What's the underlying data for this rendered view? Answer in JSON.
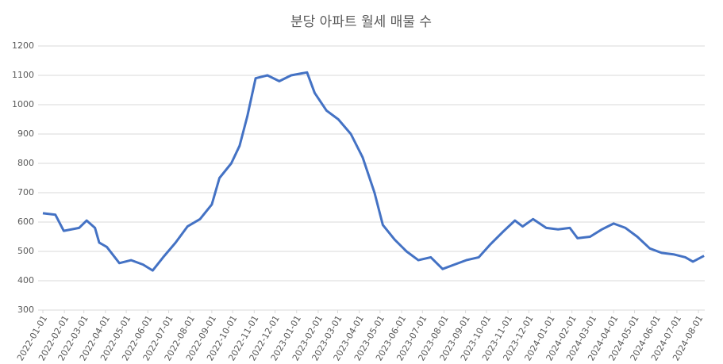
{
  "chart_data": {
    "type": "line",
    "title": "분당 아파트 월세 매물 수",
    "x": [
      "2022-01-01",
      "2022-01-19",
      "2022-01-31",
      "2022-02-22",
      "2022-03-05",
      "2022-03-17",
      "2022-03-23",
      "2022-04-03",
      "2022-04-21",
      "2022-05-08",
      "2022-05-25",
      "2022-06-08",
      "2022-06-23",
      "2022-07-11",
      "2022-07-28",
      "2022-08-15",
      "2022-09-01",
      "2022-09-12",
      "2022-09-29",
      "2022-10-11",
      "2022-10-22",
      "2022-11-03",
      "2022-11-20",
      "2022-12-07",
      "2022-12-24",
      "2023-01-16",
      "2023-01-27",
      "2023-02-13",
      "2023-03-02",
      "2023-03-20",
      "2023-04-06",
      "2023-04-23",
      "2023-05-05",
      "2023-05-22",
      "2023-06-08",
      "2023-06-25",
      "2023-07-13",
      "2023-07-30",
      "2023-08-16",
      "2023-09-02",
      "2023-09-20",
      "2023-10-07",
      "2023-10-24",
      "2023-11-11",
      "2023-11-22",
      "2023-12-07",
      "2023-12-26",
      "2024-01-12",
      "2024-01-29",
      "2024-02-09",
      "2024-02-27",
      "2024-03-15",
      "2024-04-01",
      "2024-04-18",
      "2024-05-05",
      "2024-05-23",
      "2024-06-09",
      "2024-06-26",
      "2024-07-13",
      "2024-07-24",
      "2024-08-09"
    ],
    "values": [
      630,
      625,
      570,
      580,
      605,
      580,
      530,
      515,
      460,
      470,
      455,
      435,
      480,
      530,
      585,
      610,
      660,
      750,
      800,
      860,
      960,
      1090,
      1100,
      1080,
      1100,
      1110,
      1040,
      980,
      950,
      900,
      820,
      700,
      590,
      540,
      500,
      470,
      480,
      440,
      455,
      470,
      480,
      525,
      565,
      605,
      585,
      610,
      580,
      575,
      580,
      545,
      550,
      575,
      595,
      580,
      550,
      510,
      495,
      490,
      480,
      465,
      485
    ],
    "color": "#4472c4",
    "xlim": [
      "2022-01-01",
      "2024-08-10"
    ],
    "xticks": [
      "2022-01-01",
      "2022-02-01",
      "2022-03-01",
      "2022-04-01",
      "2022-05-01",
      "2022-06-01",
      "2022-07-01",
      "2022-08-01",
      "2022-09-01",
      "2022-10-01",
      "2022-11-01",
      "2022-12-01",
      "2023-01-01",
      "2023-02-01",
      "2023-03-01",
      "2023-04-01",
      "2023-05-01",
      "2023-06-01",
      "2023-07-01",
      "2023-08-01",
      "2023-09-01",
      "2023-10-01",
      "2023-11-01",
      "2023-12-01",
      "2024-01-01",
      "2024-02-01",
      "2024-03-01",
      "2024-04-01",
      "2024-05-01",
      "2024-06-01",
      "2024-07-01",
      "2024-08-01"
    ],
    "ylim": [
      300,
      1200
    ],
    "yticks": [
      300,
      400,
      500,
      600,
      700,
      800,
      900,
      1000,
      1100,
      1200
    ],
    "grid": true
  }
}
